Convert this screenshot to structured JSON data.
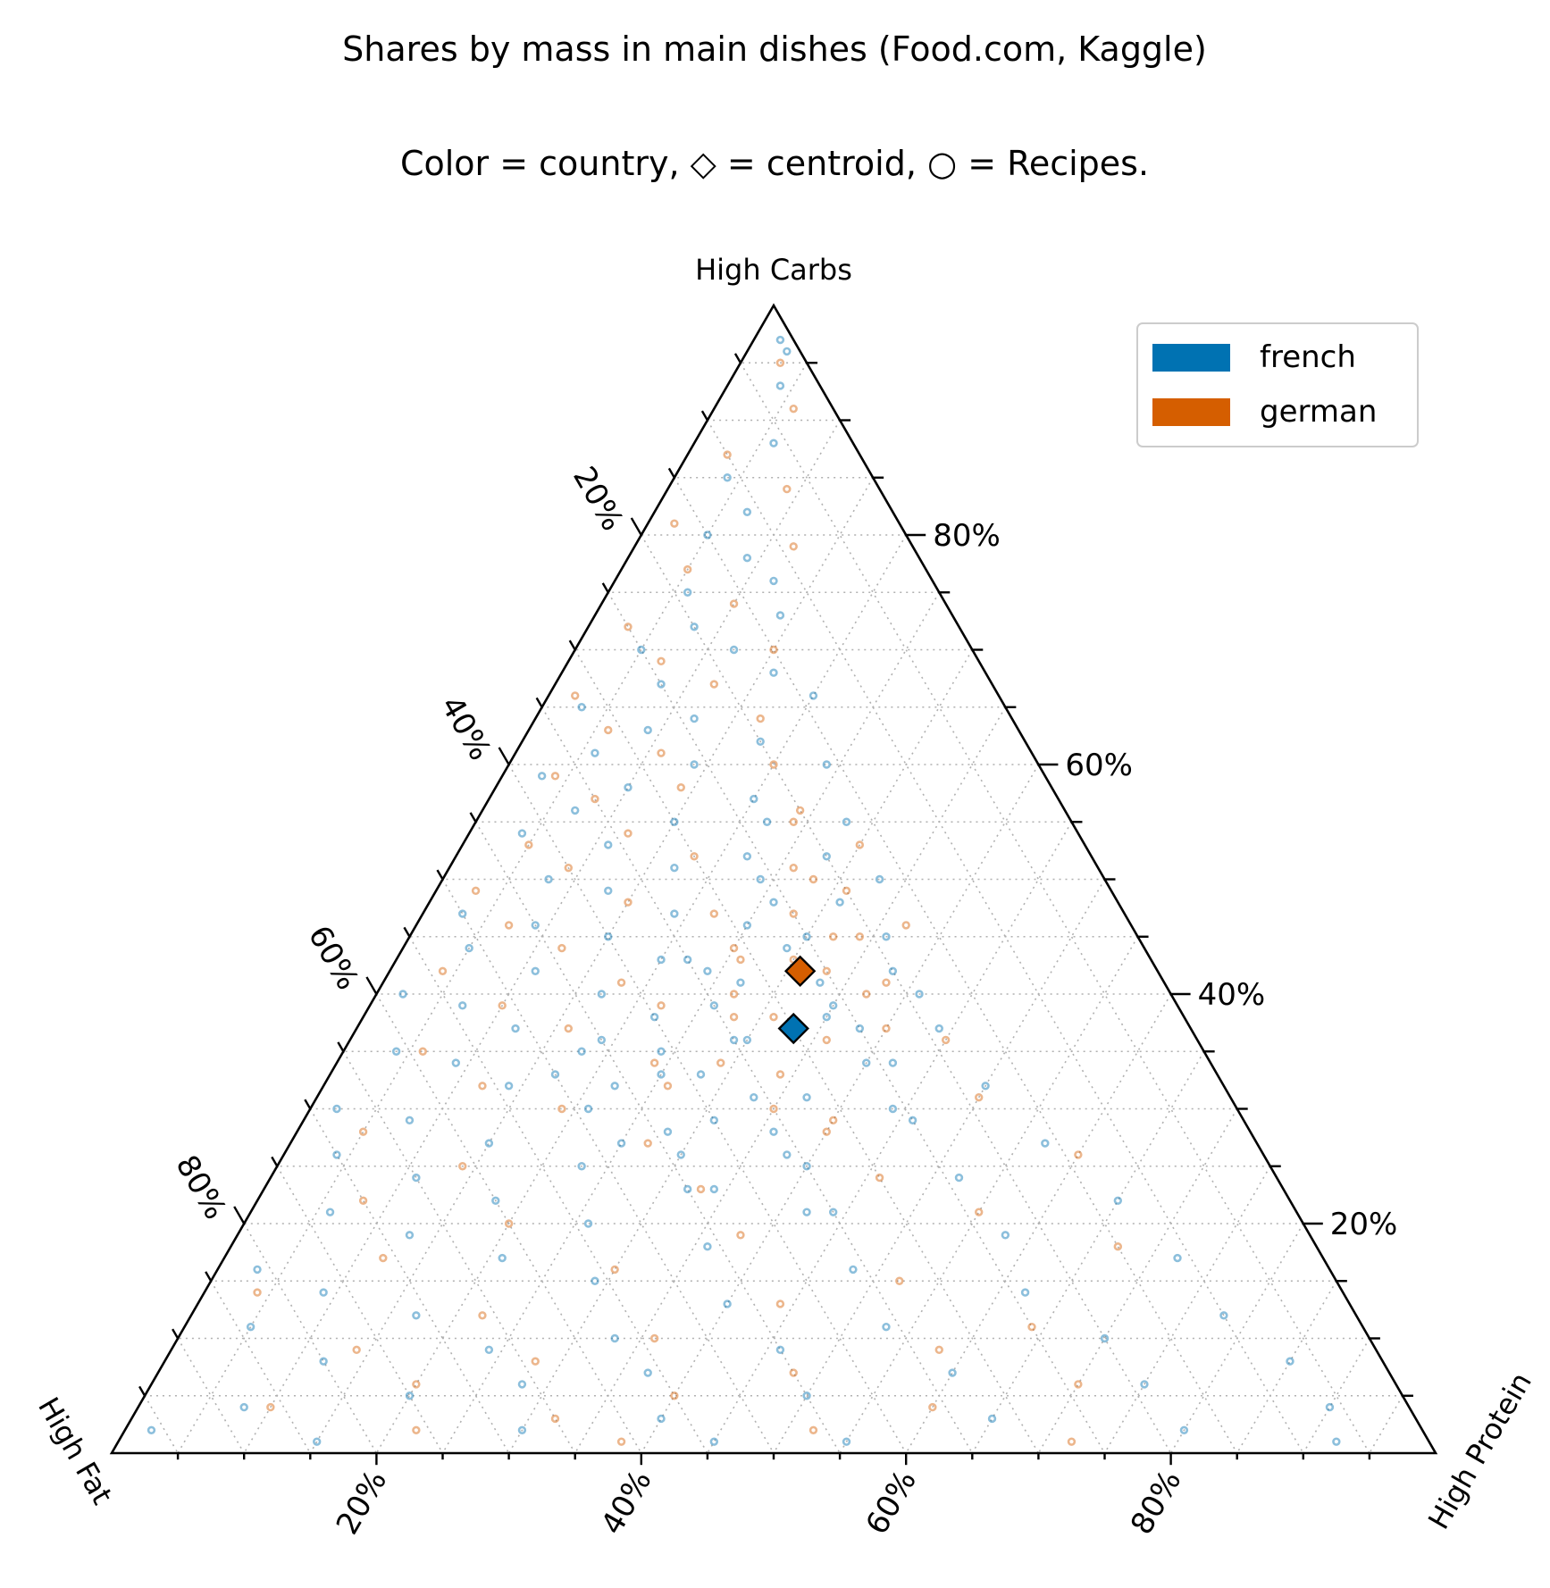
{
  "chart_data": {
    "type": "scatter",
    "subtype": "ternary",
    "title": "Shares by mass in main dishes (Food.com, Kaggle)",
    "subtitle": "Color = country, ◇ = centroid, ○ = Recipes.",
    "axes": {
      "top": "High Carbs",
      "left": "High Fat",
      "right": "High Protein"
    },
    "tick_values": [
      20,
      40,
      60,
      80
    ],
    "tick_labels": [
      "20%",
      "40%",
      "60%",
      "80%"
    ],
    "grid": true,
    "legend": {
      "position": "top-right",
      "entries": [
        {
          "name": "french",
          "color": "#0072b2"
        },
        {
          "name": "german",
          "color": "#d55e00"
        }
      ]
    },
    "series": [
      {
        "name": "french",
        "color": "#0072b2",
        "centroid": {
          "carbs": 37,
          "protein": 33,
          "fat": 30
        }
      },
      {
        "name": "german",
        "color": "#d55e00",
        "centroid": {
          "carbs": 42,
          "protein": 31,
          "fat": 27
        }
      }
    ],
    "points": {
      "french": [
        [
          97,
          2,
          1
        ],
        [
          96,
          3,
          1
        ],
        [
          93,
          4,
          3
        ],
        [
          88,
          6,
          6
        ],
        [
          85,
          4,
          11
        ],
        [
          82,
          7,
          11
        ],
        [
          80,
          5,
          15
        ],
        [
          78,
          9,
          13
        ],
        [
          76,
          12,
          12
        ],
        [
          75,
          6,
          19
        ],
        [
          73,
          14,
          13
        ],
        [
          72,
          8,
          20
        ],
        [
          70,
          5,
          25
        ],
        [
          70,
          12,
          18
        ],
        [
          68,
          16,
          16
        ],
        [
          67,
          8,
          25
        ],
        [
          66,
          20,
          14
        ],
        [
          65,
          3,
          32
        ],
        [
          64,
          12,
          24
        ],
        [
          63,
          9,
          28
        ],
        [
          62,
          18,
          20
        ],
        [
          61,
          6,
          33
        ],
        [
          60,
          14,
          26
        ],
        [
          60,
          24,
          16
        ],
        [
          59,
          3,
          38
        ],
        [
          58,
          10,
          32
        ],
        [
          57,
          20,
          23
        ],
        [
          56,
          7,
          37
        ],
        [
          55,
          15,
          30
        ],
        [
          55,
          28,
          17
        ],
        [
          54,
          4,
          42
        ],
        [
          53,
          11,
          36
        ],
        [
          52,
          22,
          26
        ],
        [
          51,
          17,
          32
        ],
        [
          50,
          8,
          42
        ],
        [
          50,
          33,
          17
        ],
        [
          49,
          13,
          38
        ],
        [
          48,
          26,
          26
        ],
        [
          47,
          3,
          50
        ],
        [
          47,
          19,
          34
        ],
        [
          46,
          9,
          45
        ],
        [
          45,
          30,
          25
        ],
        [
          45,
          15,
          40
        ],
        [
          44,
          5,
          51
        ],
        [
          43,
          22,
          35
        ],
        [
          42,
          38,
          20
        ],
        [
          42,
          11,
          47
        ],
        [
          41,
          27,
          32
        ],
        [
          40,
          2,
          58
        ],
        [
          40,
          17,
          43
        ],
        [
          39,
          35,
          26
        ],
        [
          39,
          7,
          54
        ],
        [
          38,
          22,
          40
        ],
        [
          37,
          44,
          19
        ],
        [
          37,
          12,
          51
        ],
        [
          36,
          29,
          35
        ],
        [
          35,
          4,
          61
        ],
        [
          35,
          18,
          47
        ],
        [
          34,
          40,
          26
        ],
        [
          34,
          9,
          57
        ],
        [
          33,
          25,
          42
        ],
        [
          32,
          50,
          18
        ],
        [
          32,
          14,
          54
        ],
        [
          31,
          33,
          36
        ],
        [
          30,
          2,
          68
        ],
        [
          30,
          21,
          49
        ],
        [
          29,
          46,
          25
        ],
        [
          29,
          8,
          63
        ],
        [
          28,
          28,
          44
        ],
        [
          27,
          57,
          16
        ],
        [
          27,
          15,
          58
        ],
        [
          26,
          38,
          36
        ],
        [
          26,
          4,
          70
        ],
        [
          25,
          23,
          52
        ],
        [
          24,
          52,
          24
        ],
        [
          24,
          11,
          65
        ],
        [
          23,
          32,
          45
        ],
        [
          22,
          65,
          13
        ],
        [
          22,
          18,
          60
        ],
        [
          21,
          44,
          35
        ],
        [
          21,
          6,
          73
        ],
        [
          20,
          26,
          54
        ],
        [
          19,
          58,
          23
        ],
        [
          19,
          13,
          68
        ],
        [
          18,
          36,
          46
        ],
        [
          17,
          72,
          11
        ],
        [
          17,
          21,
          62
        ],
        [
          16,
          48,
          36
        ],
        [
          16,
          3,
          81
        ],
        [
          15,
          29,
          56
        ],
        [
          14,
          62,
          24
        ],
        [
          14,
          9,
          77
        ],
        [
          13,
          40,
          47
        ],
        [
          12,
          78,
          10
        ],
        [
          12,
          17,
          71
        ],
        [
          11,
          53,
          36
        ],
        [
          11,
          5,
          84
        ],
        [
          10,
          33,
          57
        ],
        [
          10,
          70,
          20
        ],
        [
          9,
          24,
          67
        ],
        [
          9,
          46,
          45
        ],
        [
          8,
          85,
          7
        ],
        [
          8,
          12,
          80
        ],
        [
          7,
          60,
          33
        ],
        [
          7,
          37,
          56
        ],
        [
          6,
          28,
          66
        ],
        [
          6,
          75,
          19
        ],
        [
          5,
          20,
          75
        ],
        [
          5,
          50,
          45
        ],
        [
          4,
          90,
          6
        ],
        [
          4,
          8,
          88
        ],
        [
          3,
          40,
          57
        ],
        [
          3,
          65,
          32
        ],
        [
          2,
          30,
          68
        ],
        [
          2,
          80,
          18
        ],
        [
          2,
          2,
          96
        ],
        [
          1,
          55,
          44
        ],
        [
          1,
          15,
          84
        ],
        [
          1,
          45,
          54
        ],
        [
          1,
          92,
          7
        ],
        [
          36,
          30,
          34
        ],
        [
          38,
          35,
          27
        ],
        [
          33,
          28,
          39
        ],
        [
          41,
          33,
          26
        ],
        [
          35,
          24,
          41
        ],
        [
          31,
          37,
          32
        ],
        [
          44,
          29,
          27
        ],
        [
          29,
          31,
          40
        ],
        [
          39,
          26,
          35
        ],
        [
          34,
          42,
          24
        ],
        [
          42,
          24,
          34
        ],
        [
          28,
          36,
          36
        ],
        [
          46,
          25,
          29
        ],
        [
          32,
          22,
          46
        ],
        [
          37,
          38,
          25
        ],
        [
          26,
          30,
          44
        ],
        [
          48,
          31,
          21
        ],
        [
          30,
          44,
          26
        ],
        [
          43,
          20,
          37
        ],
        [
          25,
          40,
          35
        ],
        [
          50,
          24,
          26
        ],
        [
          36,
          19,
          45
        ],
        [
          40,
          41,
          19
        ],
        [
          23,
          34,
          43
        ],
        [
          52,
          28,
          20
        ],
        [
          27,
          25,
          48
        ],
        [
          45,
          36,
          19
        ],
        [
          21,
          42,
          37
        ],
        [
          55,
          22,
          23
        ],
        [
          33,
          17,
          50
        ]
      ],
      "german": [
        [
          95,
          3,
          2
        ],
        [
          91,
          6,
          3
        ],
        [
          87,
          3,
          10
        ],
        [
          84,
          9,
          7
        ],
        [
          81,
          2,
          17
        ],
        [
          79,
          12,
          9
        ],
        [
          77,
          5,
          18
        ],
        [
          74,
          10,
          16
        ],
        [
          72,
          3,
          25
        ],
        [
          70,
          15,
          15
        ],
        [
          69,
          7,
          24
        ],
        [
          67,
          12,
          21
        ],
        [
          66,
          2,
          32
        ],
        [
          64,
          17,
          19
        ],
        [
          63,
          6,
          31
        ],
        [
          61,
          11,
          28
        ],
        [
          60,
          20,
          20
        ],
        [
          59,
          4,
          37
        ],
        [
          58,
          14,
          28
        ],
        [
          57,
          8,
          35
        ],
        [
          56,
          24,
          20
        ],
        [
          54,
          12,
          34
        ],
        [
          53,
          5,
          42
        ],
        [
          52,
          18,
          30
        ],
        [
          51,
          9,
          40
        ],
        [
          50,
          28,
          22
        ],
        [
          49,
          3,
          48
        ],
        [
          48,
          15,
          37
        ],
        [
          47,
          22,
          31
        ],
        [
          46,
          7,
          47
        ],
        [
          45,
          32,
          23
        ],
        [
          44,
          12,
          44
        ],
        [
          43,
          26,
          31
        ],
        [
          42,
          4,
          54
        ],
        [
          41,
          18,
          41
        ],
        [
          40,
          37,
          23
        ],
        [
          39,
          10,
          51
        ],
        [
          38,
          28,
          34
        ],
        [
          37,
          16,
          47
        ],
        [
          36,
          45,
          19
        ],
        [
          35,
          6,
          59
        ],
        [
          34,
          24,
          42
        ],
        [
          33,
          34,
          33
        ],
        [
          32,
          12,
          56
        ],
        [
          31,
          50,
          19
        ],
        [
          30,
          19,
          51
        ],
        [
          29,
          40,
          31
        ],
        [
          28,
          5,
          67
        ],
        [
          27,
          27,
          46
        ],
        [
          26,
          60,
          14
        ],
        [
          25,
          14,
          61
        ],
        [
          24,
          46,
          30
        ],
        [
          23,
          33,
          44
        ],
        [
          22,
          8,
          70
        ],
        [
          21,
          55,
          24
        ],
        [
          20,
          20,
          60
        ],
        [
          19,
          38,
          43
        ],
        [
          18,
          67,
          15
        ],
        [
          17,
          12,
          71
        ],
        [
          16,
          30,
          54
        ],
        [
          15,
          52,
          33
        ],
        [
          14,
          4,
          82
        ],
        [
          13,
          44,
          43
        ],
        [
          12,
          22,
          66
        ],
        [
          11,
          64,
          25
        ],
        [
          10,
          36,
          54
        ],
        [
          9,
          14,
          77
        ],
        [
          9,
          58,
          33
        ],
        [
          8,
          28,
          64
        ],
        [
          7,
          48,
          45
        ],
        [
          6,
          70,
          24
        ],
        [
          6,
          20,
          74
        ],
        [
          5,
          40,
          55
        ],
        [
          4,
          60,
          36
        ],
        [
          4,
          10,
          86
        ],
        [
          3,
          32,
          65
        ],
        [
          2,
          52,
          46
        ],
        [
          2,
          22,
          76
        ],
        [
          1,
          72,
          27
        ],
        [
          1,
          38,
          61
        ],
        [
          43,
          30,
          27
        ],
        [
          40,
          27,
          33
        ],
        [
          45,
          34,
          21
        ],
        [
          38,
          31,
          31
        ],
        [
          47,
          28,
          25
        ],
        [
          36,
          36,
          28
        ],
        [
          49,
          31,
          20
        ],
        [
          34,
          29,
          37
        ],
        [
          41,
          38,
          21
        ],
        [
          44,
          25,
          31
        ],
        [
          39,
          22,
          39
        ],
        [
          51,
          26,
          23
        ],
        [
          37,
          40,
          23
        ],
        [
          42,
          33,
          25
        ],
        [
          30,
          35,
          35
        ],
        [
          53,
          30,
          17
        ],
        [
          32,
          26,
          42
        ],
        [
          46,
          37,
          17
        ],
        [
          28,
          40,
          32
        ],
        [
          55,
          24,
          21
        ]
      ]
    }
  }
}
